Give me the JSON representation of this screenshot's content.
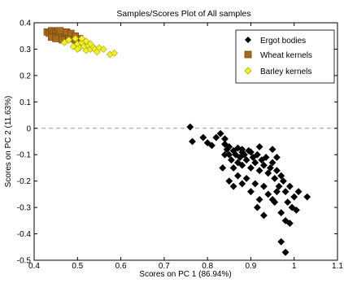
{
  "chart_data": {
    "type": "scatter",
    "title": "Samples/Scores Plot of All samples",
    "xlabel": "Scores on PC 1 (86.94%)",
    "ylabel": "Scores on PC 2 (11.63%)",
    "xlim": [
      0.4,
      1.1
    ],
    "ylim": [
      -0.5,
      0.4
    ],
    "xticks": [
      0.4,
      0.5,
      0.6,
      0.7,
      0.8,
      0.9,
      1,
      1.1
    ],
    "yticks": [
      -0.5,
      -0.4,
      -0.3,
      -0.2,
      -0.1,
      0,
      0.1,
      0.2,
      0.3,
      0.4
    ],
    "xtick_labels": [
      "0.4",
      "0.5",
      "0.6",
      "0.7",
      "0.8",
      "0.9",
      "1",
      "1.1"
    ],
    "ytick_labels": [
      "-0.5",
      "-0.4",
      "-0.3",
      "-0.2",
      "-0.1",
      "0",
      "0.1",
      "0.2",
      "0.3",
      "0.4"
    ],
    "zero_line": true,
    "grid": false,
    "legend_position": "top-right",
    "series": [
      {
        "name": "Ergot bodies",
        "marker": "diamond",
        "color": "#000000",
        "points": [
          [
            0.76,
            0.005
          ],
          [
            0.765,
            -0.05
          ],
          [
            0.79,
            -0.035
          ],
          [
            0.8,
            -0.055
          ],
          [
            0.81,
            -0.065
          ],
          [
            0.82,
            -0.035
          ],
          [
            0.83,
            -0.02
          ],
          [
            0.84,
            -0.04
          ],
          [
            0.84,
            -0.06
          ],
          [
            0.845,
            -0.08
          ],
          [
            0.85,
            -0.07
          ],
          [
            0.85,
            -0.1
          ],
          [
            0.855,
            -0.12
          ],
          [
            0.86,
            -0.085
          ],
          [
            0.86,
            -0.15
          ],
          [
            0.865,
            -0.1
          ],
          [
            0.87,
            -0.075
          ],
          [
            0.87,
            -0.13
          ],
          [
            0.875,
            -0.11
          ],
          [
            0.88,
            -0.08
          ],
          [
            0.88,
            -0.14
          ],
          [
            0.885,
            -0.1
          ],
          [
            0.89,
            -0.12
          ],
          [
            0.895,
            -0.085
          ],
          [
            0.9,
            -0.15
          ],
          [
            0.905,
            -0.11
          ],
          [
            0.91,
            -0.13
          ],
          [
            0.915,
            -0.1
          ],
          [
            0.92,
            -0.16
          ],
          [
            0.925,
            -0.12
          ],
          [
            0.93,
            -0.14
          ],
          [
            0.935,
            -0.11
          ],
          [
            0.94,
            -0.17
          ],
          [
            0.945,
            -0.15
          ],
          [
            0.95,
            -0.13
          ],
          [
            0.955,
            -0.19
          ],
          [
            0.96,
            -0.16
          ],
          [
            0.965,
            -0.22
          ],
          [
            0.97,
            -0.18
          ],
          [
            0.975,
            -0.2
          ],
          [
            0.98,
            -0.24
          ],
          [
            0.985,
            -0.28
          ],
          [
            0.99,
            -0.22
          ],
          [
            0.995,
            -0.3
          ],
          [
            1.0,
            -0.26
          ],
          [
            1.005,
            -0.31
          ],
          [
            1.01,
            -0.24
          ],
          [
            1.03,
            -0.26
          ],
          [
            0.97,
            -0.43
          ],
          [
            0.98,
            -0.47
          ],
          [
            0.85,
            -0.2
          ],
          [
            0.86,
            -0.22
          ],
          [
            0.87,
            -0.18
          ],
          [
            0.88,
            -0.21
          ],
          [
            0.89,
            -0.19
          ],
          [
            0.9,
            -0.24
          ],
          [
            0.91,
            -0.21
          ],
          [
            0.92,
            -0.27
          ],
          [
            0.93,
            -0.22
          ],
          [
            0.94,
            -0.25
          ],
          [
            0.95,
            -0.27
          ],
          [
            0.96,
            -0.24
          ],
          [
            0.97,
            -0.32
          ],
          [
            0.98,
            -0.35
          ],
          [
            0.99,
            -0.36
          ],
          [
            0.915,
            -0.3
          ],
          [
            0.93,
            -0.33
          ],
          [
            0.955,
            -0.28
          ],
          [
            0.84,
            -0.1
          ],
          [
            0.835,
            -0.15
          ],
          [
            0.88,
            -0.09
          ],
          [
            0.9,
            -0.09
          ],
          [
            0.92,
            -0.07
          ],
          [
            0.95,
            -0.08
          ],
          [
            0.96,
            -0.11
          ]
        ]
      },
      {
        "name": "Wheat kernels",
        "marker": "square",
        "color": "#a86b1e",
        "points": [
          [
            0.43,
            0.365
          ],
          [
            0.435,
            0.36
          ],
          [
            0.44,
            0.37
          ],
          [
            0.44,
            0.355
          ],
          [
            0.445,
            0.365
          ],
          [
            0.45,
            0.36
          ],
          [
            0.45,
            0.35
          ],
          [
            0.455,
            0.37
          ],
          [
            0.46,
            0.355
          ],
          [
            0.46,
            0.34
          ],
          [
            0.465,
            0.365
          ],
          [
            0.47,
            0.35
          ],
          [
            0.47,
            0.36
          ],
          [
            0.475,
            0.345
          ],
          [
            0.48,
            0.355
          ],
          [
            0.485,
            0.34
          ],
          [
            0.49,
            0.345
          ],
          [
            0.495,
            0.335
          ],
          [
            0.5,
            0.33
          ],
          [
            0.505,
            0.34
          ],
          [
            0.51,
            0.325
          ],
          [
            0.455,
            0.345
          ],
          [
            0.465,
            0.335
          ],
          [
            0.475,
            0.365
          ],
          [
            0.485,
            0.36
          ],
          [
            0.44,
            0.345
          ],
          [
            0.45,
            0.34
          ],
          [
            0.46,
            0.37
          ],
          [
            0.495,
            0.35
          ]
        ]
      },
      {
        "name": "Barley kernels",
        "marker": "diamond",
        "color": "#f0f02a",
        "points": [
          [
            0.47,
            0.325
          ],
          [
            0.48,
            0.335
          ],
          [
            0.49,
            0.31
          ],
          [
            0.5,
            0.32
          ],
          [
            0.505,
            0.305
          ],
          [
            0.51,
            0.325
          ],
          [
            0.515,
            0.31
          ],
          [
            0.52,
            0.295
          ],
          [
            0.525,
            0.315
          ],
          [
            0.53,
            0.3
          ],
          [
            0.535,
            0.31
          ],
          [
            0.54,
            0.3
          ],
          [
            0.545,
            0.29
          ],
          [
            0.55,
            0.305
          ],
          [
            0.56,
            0.3
          ],
          [
            0.575,
            0.28
          ],
          [
            0.585,
            0.285
          ],
          [
            0.495,
            0.34
          ],
          [
            0.51,
            0.34
          ],
          [
            0.52,
            0.33
          ],
          [
            0.5,
            0.3
          ],
          [
            0.53,
            0.32
          ]
        ]
      }
    ]
  }
}
